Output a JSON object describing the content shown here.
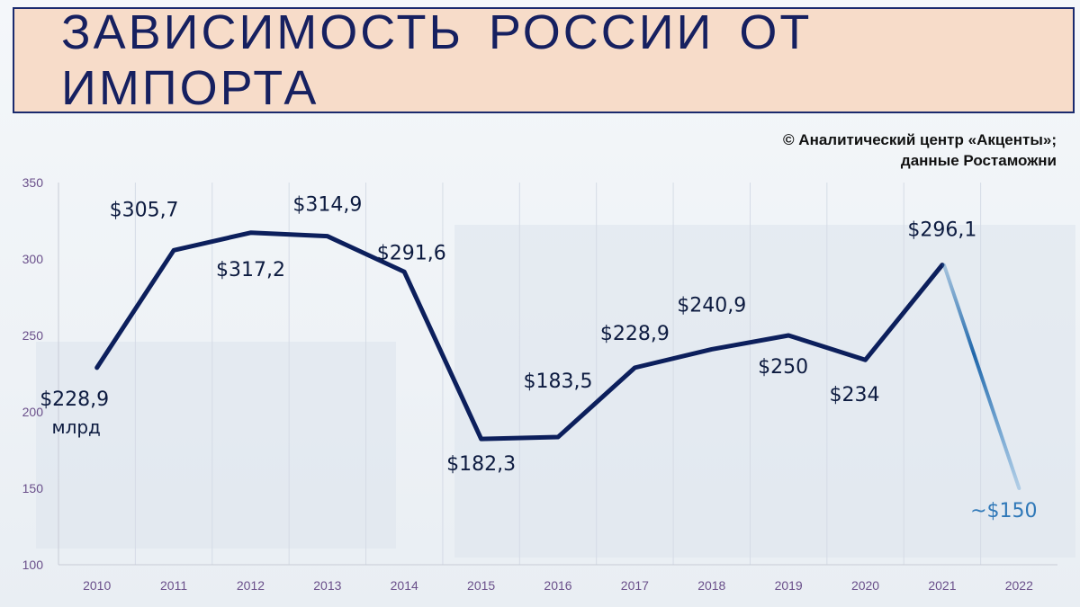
{
  "title": "ЗАВИСИМОСТЬ РОССИИ ОТ ИМПОРТА",
  "source": {
    "line1": "©  Аналитический  центр «Акценты»;",
    "line2": "данные Ростаможни"
  },
  "chart_data": {
    "type": "line",
    "categories": [
      "2010",
      "2011",
      "2012",
      "2013",
      "2014",
      "2015",
      "2016",
      "2017",
      "2018",
      "2019",
      "2020",
      "2021",
      "2022"
    ],
    "values": [
      228.9,
      305.7,
      317.2,
      314.9,
      291.6,
      182.3,
      183.5,
      228.9,
      240.9,
      250,
      234,
      296.1,
      150
    ],
    "data_labels": [
      "$228,9",
      "$305,7",
      "$317,2",
      "$314,9",
      "$291,6",
      "$182,3",
      "$183,5",
      "$228,9",
      "$240,9",
      "$250",
      "$234",
      "$296,1",
      "~$150"
    ],
    "first_label_unit": "млрд",
    "forecast_from_index": 11,
    "ylim": [
      100,
      350
    ],
    "yticks": [
      100,
      150,
      200,
      250,
      300,
      350
    ],
    "grid": "vertical",
    "colors": {
      "line": "#0c1f5c",
      "forecast": "#2f78b8",
      "axis_text": "#6a4f8a",
      "grid": "#d5dbe6"
    }
  }
}
